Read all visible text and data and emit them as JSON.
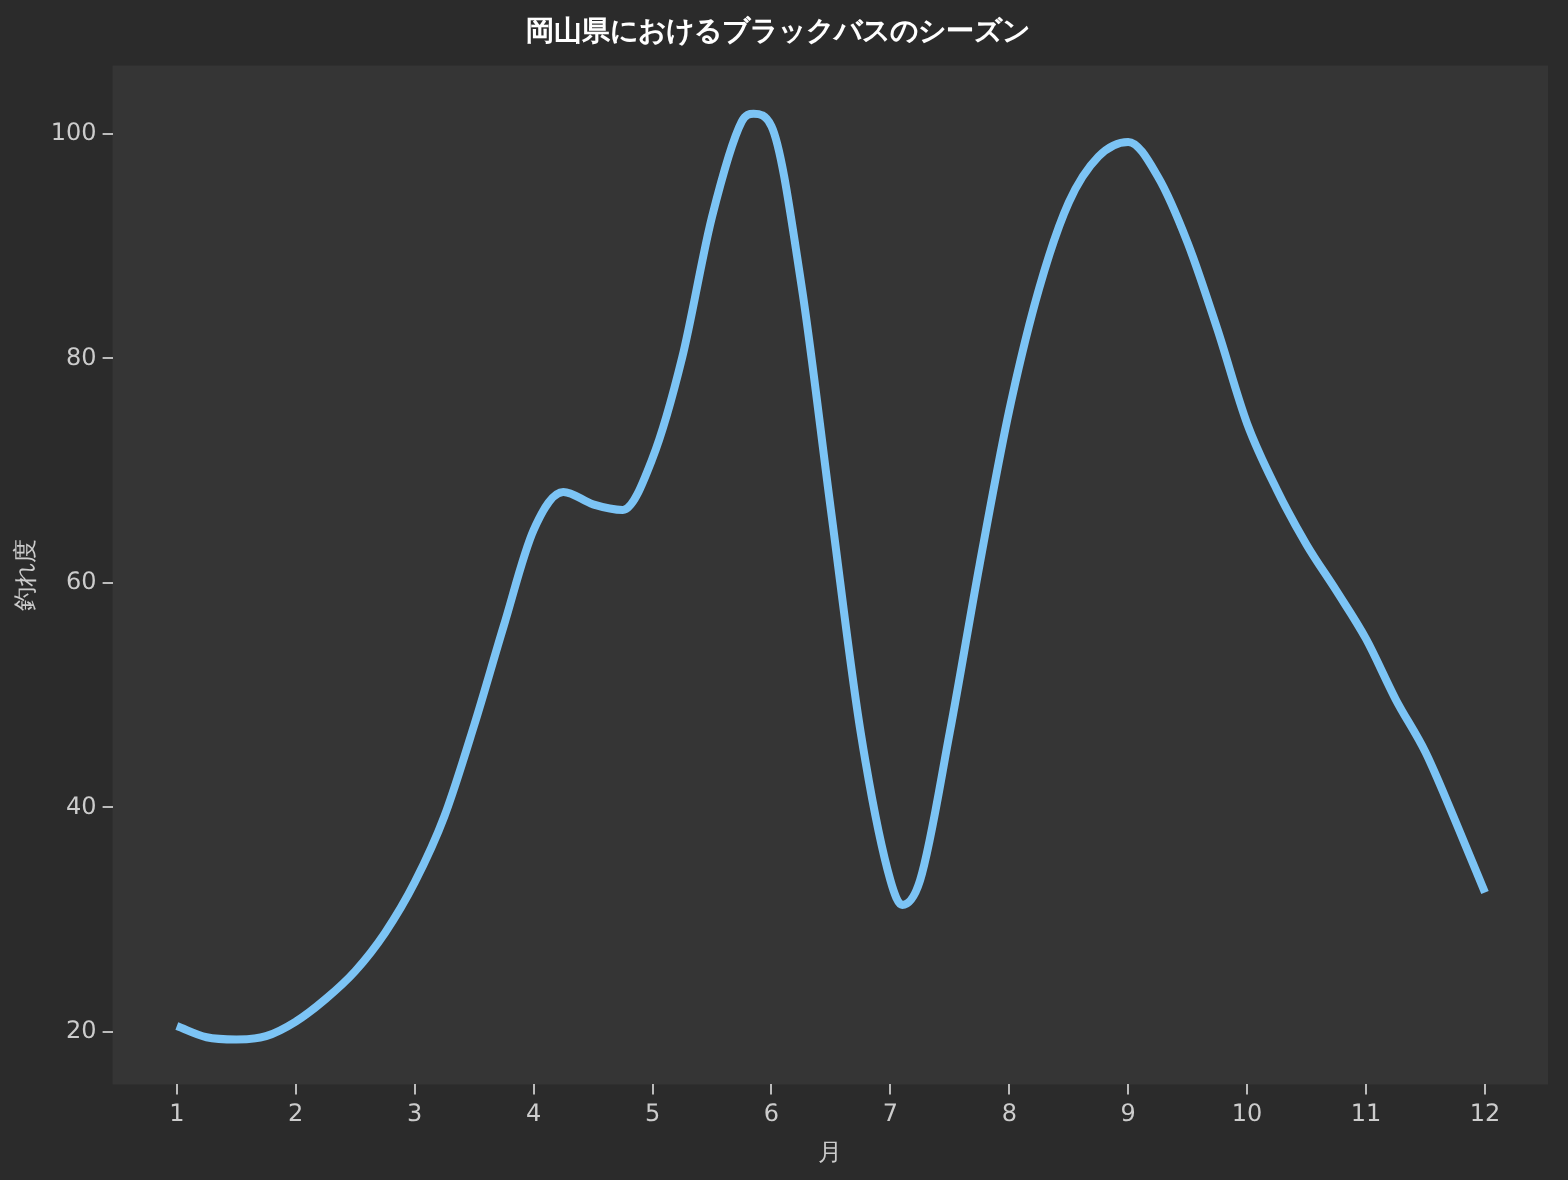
{
  "chart_data": {
    "type": "line",
    "title": "岡山県におけるブラックバスのシーズン",
    "xlabel": "月",
    "ylabel": "釣れ度",
    "x": [
      1,
      1.25,
      1.5,
      1.75,
      2,
      2.25,
      2.5,
      2.75,
      3,
      3.25,
      3.5,
      3.75,
      4,
      4.25,
      4.5,
      4.75,
      5,
      5.25,
      5.5,
      5.75,
      5.85,
      6,
      6.25,
      6.5,
      6.75,
      7,
      7.1,
      7.25,
      7.5,
      7.75,
      8,
      8.25,
      8.5,
      8.75,
      9,
      9.25,
      9.5,
      9.75,
      10,
      10.25,
      10.5,
      10.75,
      11,
      11.25,
      11.5,
      11.75,
      12
    ],
    "series": [
      {
        "color": "#7cc4f5",
        "values": [
          20.5,
          19.5,
          19.3,
          19.6,
          20.9,
          22.9,
          25.4,
          28.8,
          33.3,
          39.2,
          47.3,
          56.2,
          64.7,
          68.1,
          67,
          66.5,
          71.1,
          80.1,
          92.6,
          101.1,
          101.8,
          100.7,
          86.7,
          66.5,
          46.7,
          33.5,
          31.3,
          33.5,
          46.7,
          61.6,
          75.4,
          86.2,
          93.9,
          98,
          99.3,
          96.2,
          90.3,
          82.6,
          74.2,
          68.3,
          63.4,
          59.3,
          55,
          49.6,
          44.9,
          38.8,
          32.4
        ]
      }
    ],
    "xlim": [
      0.46,
      12.53
    ],
    "xticks": [
      1,
      2,
      3,
      4,
      5,
      6,
      7,
      8,
      9,
      10,
      11,
      12
    ],
    "ylim": [
      15.3,
      106.1
    ],
    "yticks": [
      20,
      40,
      60,
      80,
      100
    ],
    "grid": false,
    "legend": false,
    "marker": "none",
    "line_style": "solid"
  }
}
